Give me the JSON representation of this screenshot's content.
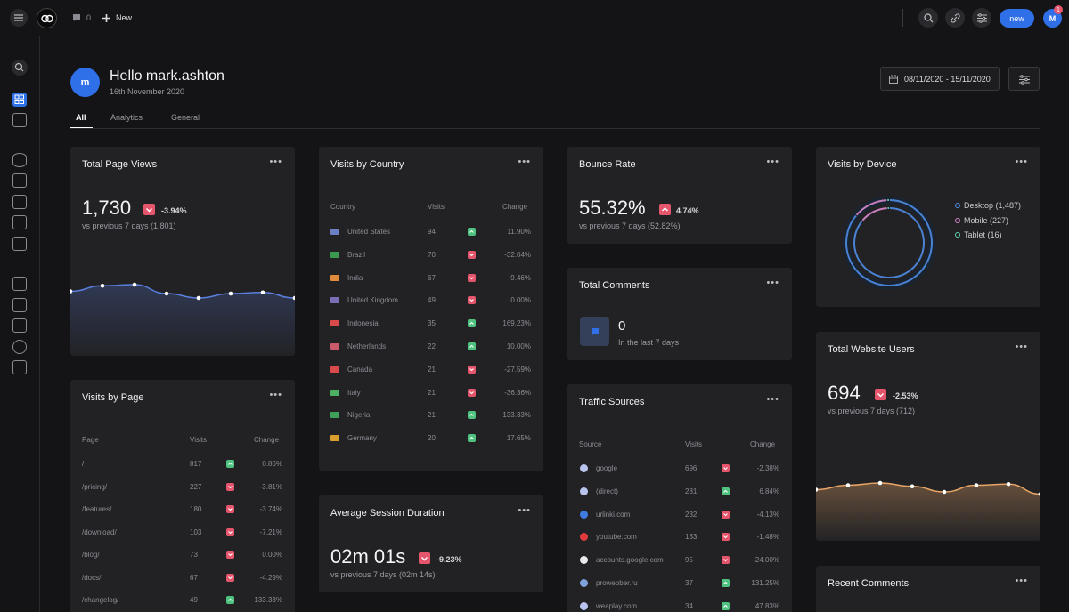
{
  "topbar": {
    "comment_count": "0",
    "new_label": "New",
    "new_button": "new",
    "avatar_letter": "M",
    "notification_count": "1"
  },
  "header": {
    "avatar_letter": "m",
    "greeting": "Hello mark.ashton",
    "date": "16th November 2020",
    "date_range": "08/11/2020 - 15/11/2020"
  },
  "tabs": [
    "All",
    "Analytics",
    "General"
  ],
  "page_views": {
    "title": "Total Page Views",
    "value": "1,730",
    "delta": "-3.94%",
    "sub": "vs previous 7 days (1,801)"
  },
  "visits_by_page": {
    "title": "Visits by Page",
    "headers": [
      "Page",
      "Visits",
      "Change"
    ],
    "rows": [
      {
        "page": "/",
        "visits": "817",
        "change": "0.86%",
        "up": true
      },
      {
        "page": "/pricing/",
        "visits": "227",
        "change": "-3.81%",
        "up": false
      },
      {
        "page": "/features/",
        "visits": "180",
        "change": "-3.74%",
        "up": false
      },
      {
        "page": "/download/",
        "visits": "103",
        "change": "-7.21%",
        "up": false
      },
      {
        "page": "/blog/",
        "visits": "73",
        "change": "0.00%",
        "up": false
      },
      {
        "page": "/docs/",
        "visits": "67",
        "change": "-4.29%",
        "up": false
      },
      {
        "page": "/changelog/",
        "visits": "49",
        "change": "133.33%",
        "up": true
      }
    ]
  },
  "visits_by_country": {
    "title": "Visits by Country",
    "headers": [
      "Country",
      "Visits",
      "Change"
    ],
    "rows": [
      {
        "country": "United States",
        "visits": "94",
        "change": "11.90%",
        "up": true,
        "flag": "#6a7fc4"
      },
      {
        "country": "Brazil",
        "visits": "70",
        "change": "-32.04%",
        "up": false,
        "flag": "#3b9a4f"
      },
      {
        "country": "India",
        "visits": "67",
        "change": "-9.46%",
        "up": false,
        "flag": "#e08a3c"
      },
      {
        "country": "United Kingdom",
        "visits": "49",
        "change": "0.00%",
        "up": false,
        "flag": "#7b6fb8"
      },
      {
        "country": "Indonesia",
        "visits": "35",
        "change": "169.23%",
        "up": true,
        "flag": "#d94a4a"
      },
      {
        "country": "Netherlands",
        "visits": "22",
        "change": "10.00%",
        "up": true,
        "flag": "#c85a6a"
      },
      {
        "country": "Canada",
        "visits": "21",
        "change": "-27.59%",
        "up": false,
        "flag": "#d94a4a"
      },
      {
        "country": "Italy",
        "visits": "21",
        "change": "-36.36%",
        "up": false,
        "flag": "#4caf62"
      },
      {
        "country": "Nigeria",
        "visits": "21",
        "change": "133.33%",
        "up": true,
        "flag": "#3fa05a"
      },
      {
        "country": "Germany",
        "visits": "20",
        "change": "17.65%",
        "up": true,
        "flag": "#d9a030"
      }
    ]
  },
  "avg_session": {
    "title": "Average Session Duration",
    "value": "02m 01s",
    "delta": "-9.23%",
    "sub": "vs previous 7 days (02m 14s)"
  },
  "bounce_rate": {
    "title": "Bounce Rate",
    "value": "55.32%",
    "delta": "4.74%",
    "sub": "vs previous 7 days (52.82%)"
  },
  "total_comments": {
    "title": "Total Comments",
    "value": "0",
    "sub": "In the last 7 days"
  },
  "traffic_sources": {
    "title": "Traffic Sources",
    "headers": [
      "Source",
      "Visits",
      "Change"
    ],
    "rows": [
      {
        "source": "google",
        "visits": "696",
        "change": "-2.38%",
        "up": false,
        "color": "#b8c4ee"
      },
      {
        "source": "(direct)",
        "visits": "281",
        "change": "6.84%",
        "up": true,
        "color": "#b8c4ee"
      },
      {
        "source": "urlinki.com",
        "visits": "232",
        "change": "-4.13%",
        "up": false,
        "color": "#3f7be0"
      },
      {
        "source": "youtube.com",
        "visits": "133",
        "change": "-1.48%",
        "up": false,
        "color": "#e23b3b"
      },
      {
        "source": "accounts.google.com",
        "visits": "95",
        "change": "-24.00%",
        "up": false,
        "color": "#e9e9e9"
      },
      {
        "source": "prowebber.ru",
        "visits": "37",
        "change": "131.25%",
        "up": true,
        "color": "#7fa0d8"
      },
      {
        "source": "weaplay.com",
        "visits": "34",
        "change": "47.83%",
        "up": true,
        "color": "#b8c4ee"
      }
    ]
  },
  "visits_by_device": {
    "title": "Visits by Device",
    "legend": [
      {
        "label": "Desktop (1,487)",
        "value": 1487,
        "color": "#4f8de8"
      },
      {
        "label": "Mobile (227)",
        "value": 227,
        "color": "#d98ad0"
      },
      {
        "label": "Tablet (16)",
        "value": 16,
        "color": "#5fd4b0"
      }
    ]
  },
  "website_users": {
    "title": "Total Website Users",
    "value": "694",
    "delta": "-2.53%",
    "sub": "vs previous 7 days (712)"
  },
  "recent_comments": {
    "title": "Recent Comments"
  },
  "chart_data": [
    {
      "type": "area",
      "title": "Total Page Views",
      "values": [
        58,
        63,
        64,
        56,
        52,
        56,
        57,
        52
      ],
      "ylim": [
        0,
        100
      ],
      "color": "#5b7fe0"
    },
    {
      "type": "pie",
      "title": "Visits by Device",
      "categories": [
        "Desktop",
        "Mobile",
        "Tablet"
      ],
      "values": [
        1487,
        227,
        16
      ]
    },
    {
      "type": "area",
      "title": "Total Website Users",
      "values": [
        46,
        50,
        52,
        49,
        44,
        50,
        51,
        42
      ],
      "ylim": [
        0,
        100
      ],
      "color": "#e8a466"
    }
  ]
}
